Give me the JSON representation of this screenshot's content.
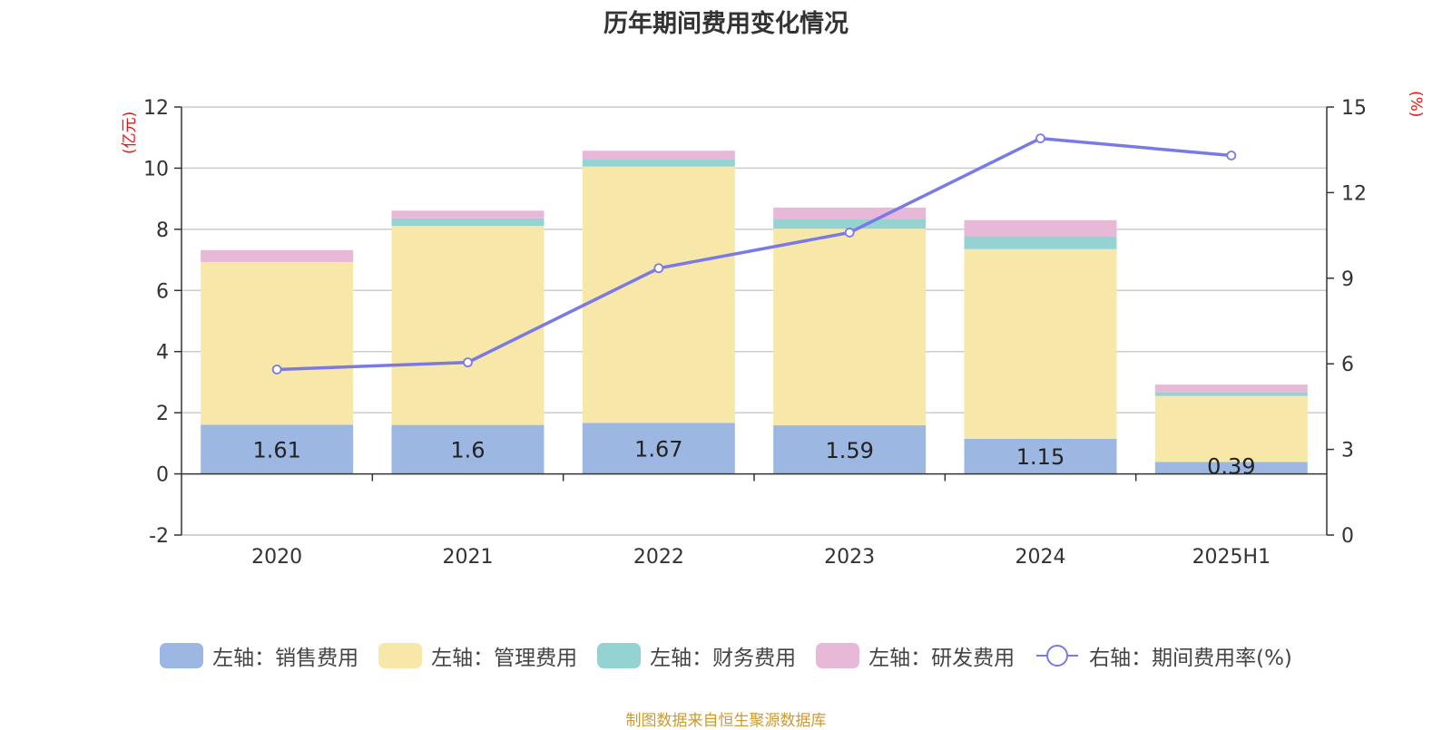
{
  "page_title": "历年期间费用变化情况",
  "left_unit": "(亿元)",
  "right_unit": "(%)",
  "footer": "制图数据来自恒生聚源数据库",
  "colors": {
    "sales": "#9cb8e2",
    "admin": "#f7e7a8",
    "finance": "#95d3d3",
    "rnd": "#e8b8d8",
    "rate": "#7a7ae6",
    "grid": "#cccccc",
    "axis": "#333333"
  },
  "chart_data": {
    "type": "bar",
    "stacked": true,
    "title": "历年期间费用变化情况",
    "categories": [
      "2020",
      "2021",
      "2022",
      "2023",
      "2024",
      "2025H1"
    ],
    "y_left": {
      "label": "(亿元)",
      "ylim": [
        -2,
        12
      ],
      "ticks": [
        -2,
        0,
        2,
        4,
        6,
        8,
        10,
        12
      ]
    },
    "y_right": {
      "label": "(%)",
      "ylim": [
        0,
        15
      ],
      "ticks": [
        0,
        3,
        6,
        9,
        12,
        15
      ]
    },
    "series": [
      {
        "name": "左轴：销售费用",
        "key": "sales",
        "axis": "left",
        "values": [
          1.61,
          1.6,
          1.67,
          1.59,
          1.15,
          0.39
        ],
        "labels": [
          "1.61",
          "1.6",
          "1.67",
          "1.59",
          "1.15",
          "0.39"
        ]
      },
      {
        "name": "左轴：管理费用",
        "key": "admin",
        "axis": "left",
        "values": [
          5.32,
          6.51,
          8.38,
          6.43,
          6.2,
          2.16
        ]
      },
      {
        "name": "左轴：财务费用",
        "key": "finance",
        "axis": "left",
        "values": [
          0.0,
          0.25,
          0.25,
          0.32,
          0.42,
          0.12
        ]
      },
      {
        "name": "左轴：研发费用",
        "key": "rnd",
        "axis": "left",
        "values": [
          0.39,
          0.25,
          0.27,
          0.37,
          0.53,
          0.25
        ]
      },
      {
        "name": "右轴：期间费用率(%)",
        "key": "rate",
        "axis": "right",
        "type": "line",
        "values": [
          5.8,
          6.05,
          9.35,
          10.6,
          13.9,
          13.3
        ]
      }
    ],
    "grid": true,
    "legend": "bottom"
  }
}
